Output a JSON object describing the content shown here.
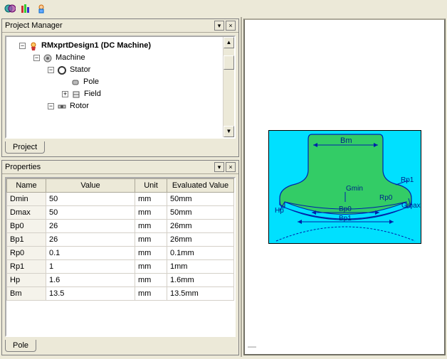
{
  "toolbar": {
    "icons": [
      "validate-icon",
      "analyze-icon",
      "results-icon"
    ]
  },
  "project_manager": {
    "title": "Project Manager",
    "tab_label": "Project",
    "tree": {
      "root": {
        "label": "RMxprtDesign1 (DC Machine)",
        "bold": true
      },
      "machine": {
        "label": "Machine"
      },
      "stator": {
        "label": "Stator"
      },
      "pole": {
        "label": "Pole"
      },
      "field": {
        "label": "Field"
      },
      "rotor": {
        "label": "Rotor"
      }
    }
  },
  "properties": {
    "title": "Properties",
    "tab_label": "Pole",
    "columns": [
      "Name",
      "Value",
      "Unit",
      "Evaluated Value"
    ],
    "col_widths": [
      "55px",
      "125px",
      "45px",
      "auto"
    ],
    "rows": [
      {
        "name": "Dmin",
        "value": "50",
        "unit": "mm",
        "eval": "50mm"
      },
      {
        "name": "Dmax",
        "value": "50",
        "unit": "mm",
        "eval": "50mm"
      },
      {
        "name": "Bp0",
        "value": "26",
        "unit": "mm",
        "eval": "26mm"
      },
      {
        "name": "Bp1",
        "value": "26",
        "unit": "mm",
        "eval": "26mm"
      },
      {
        "name": "Rp0",
        "value": "0.1",
        "unit": "mm",
        "eval": "0.1mm"
      },
      {
        "name": "Rp1",
        "value": "1",
        "unit": "mm",
        "eval": "1mm"
      },
      {
        "name": "Hp",
        "value": "1.6",
        "unit": "mm",
        "eval": "1.6mm"
      },
      {
        "name": "Bm",
        "value": "13.5",
        "unit": "mm",
        "eval": "13.5mm"
      }
    ]
  },
  "diagram": {
    "bg_color": "#00e0ff",
    "fill_color": "#33cc66",
    "stroke_color": "#0020aa",
    "label_color": "#002288",
    "labels": {
      "Bm": "Bm",
      "Gmin": "Gmin",
      "Rp0": "Rp0",
      "Rp1": "Rp1",
      "Gmax": "Gmax",
      "Hp": "Hp",
      "Bp0": "Bp0",
      "Bp1": "Bp1"
    }
  }
}
